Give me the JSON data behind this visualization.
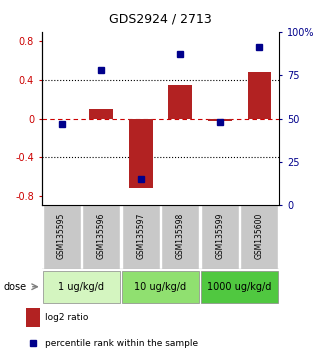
{
  "title": "GDS2924 / 2713",
  "samples": [
    "GSM135595",
    "GSM135596",
    "GSM135597",
    "GSM135598",
    "GSM135599",
    "GSM135600"
  ],
  "log2_ratio": [
    0.0,
    0.1,
    -0.72,
    0.35,
    -0.02,
    0.48
  ],
  "percentile_rank": [
    47,
    78,
    15,
    87,
    48,
    91
  ],
  "bar_color": "#b22222",
  "dot_color": "#00008b",
  "ylim_left": [
    -0.9,
    0.9
  ],
  "ylim_right": [
    0,
    100
  ],
  "yticks_left": [
    -0.8,
    -0.4,
    0.0,
    0.4,
    0.8
  ],
  "yticks_right": [
    0,
    25,
    50,
    75,
    100
  ],
  "ytick_labels_right": [
    "0",
    "25",
    "50",
    "75",
    "100%"
  ],
  "dose_groups": [
    {
      "label": "1 ug/kg/d",
      "indices": [
        0,
        1
      ],
      "color": "#d4f5c0"
    },
    {
      "label": "10 ug/kg/d",
      "indices": [
        2,
        3
      ],
      "color": "#90e070"
    },
    {
      "label": "1000 ug/kg/d",
      "indices": [
        4,
        5
      ],
      "color": "#50c840"
    }
  ],
  "legend_bar_label": "log2 ratio",
  "legend_dot_label": "percentile rank within the sample",
  "sample_box_color": "#c8c8c8",
  "background_color": "#ffffff"
}
